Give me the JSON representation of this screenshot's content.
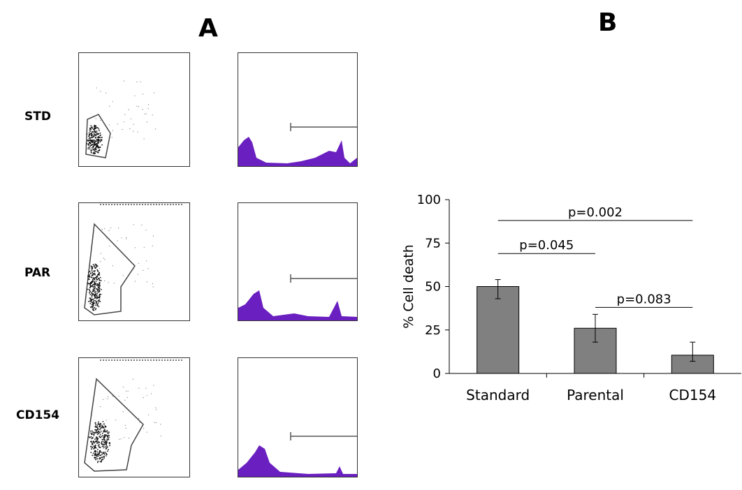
{
  "panels": {
    "a_label": "A",
    "b_label": "B"
  },
  "flow_panel": {
    "rows": [
      {
        "label": "STD"
      },
      {
        "label": "PAR"
      },
      {
        "label": "CD154"
      }
    ]
  },
  "colors": {
    "histogram_fill": "#6a1fc0",
    "bar_fill": "#808080",
    "axis": "#000000"
  },
  "chart_data": {
    "type": "bar",
    "title": "",
    "xlabel": "",
    "ylabel": "% Cell death",
    "ylim": [
      0,
      100
    ],
    "yticks": [
      0,
      25,
      50,
      75,
      100
    ],
    "categories": [
      "Standard",
      "Parental",
      "CD154"
    ],
    "values": [
      50,
      26,
      10.5
    ],
    "error_low": [
      43,
      18,
      7
    ],
    "error_high": [
      54,
      34,
      18
    ],
    "grid": false,
    "annotations": [
      {
        "text": "p=0.045",
        "from": "Standard",
        "to": "Parental",
        "y": 69
      },
      {
        "text": "p=0.083",
        "from": "Parental",
        "to": "CD154",
        "y": 38
      },
      {
        "text": "p=0.002",
        "from": "Standard",
        "to": "CD154",
        "y": 88
      }
    ]
  }
}
